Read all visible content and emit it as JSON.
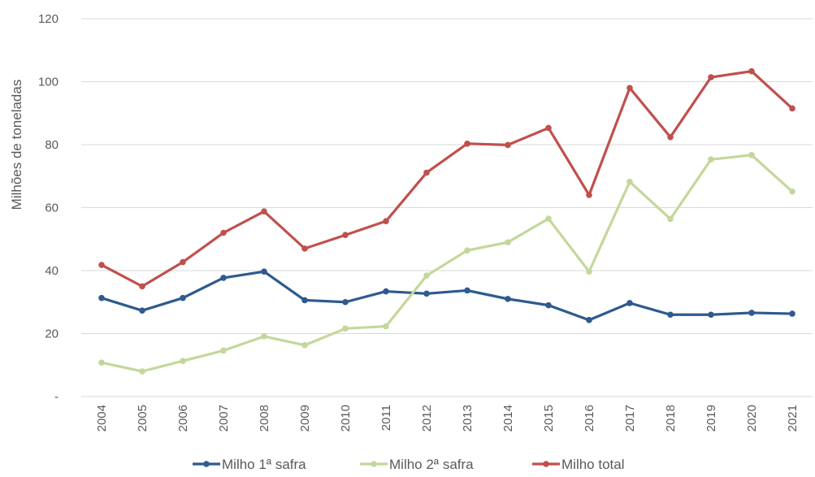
{
  "chart_data": {
    "type": "line",
    "title": "",
    "xlabel": "",
    "ylabel": "Milhões de toneladas",
    "categories": [
      "2004",
      "2005",
      "2006",
      "2007",
      "2008",
      "2009",
      "2010",
      "2011",
      "2012",
      "2013",
      "2014",
      "2015",
      "2016",
      "2017",
      "2018",
      "2019",
      "2020",
      "2021"
    ],
    "yticks": [
      "-",
      "20",
      "40",
      "60",
      "80",
      "100",
      "120"
    ],
    "ylim": [
      0,
      120
    ],
    "grid": true,
    "legend_position": "bottom",
    "series": [
      {
        "name": "Milho 1ª safra",
        "color": "#2e5a8e",
        "values": [
          31.3,
          27.3,
          31.3,
          37.7,
          39.7,
          30.6,
          30.0,
          33.4,
          32.7,
          33.7,
          31.0,
          29.0,
          24.3,
          29.7,
          26.0,
          26.0,
          26.6,
          26.3
        ]
      },
      {
        "name": "Milho 2ª safra",
        "color": "#c4d79b",
        "values": [
          10.8,
          8.0,
          11.3,
          14.6,
          19.1,
          16.3,
          21.6,
          22.3,
          38.4,
          46.4,
          49.0,
          56.5,
          39.7,
          68.2,
          56.4,
          75.3,
          76.7,
          65.1
        ]
      },
      {
        "name": "Milho total",
        "color": "#c0504d",
        "values": [
          41.8,
          35.0,
          42.7,
          52.0,
          58.8,
          47.0,
          51.3,
          55.7,
          71.1,
          80.3,
          79.9,
          85.3,
          64.0,
          98.0,
          82.4,
          101.4,
          103.3,
          91.5
        ]
      }
    ]
  }
}
